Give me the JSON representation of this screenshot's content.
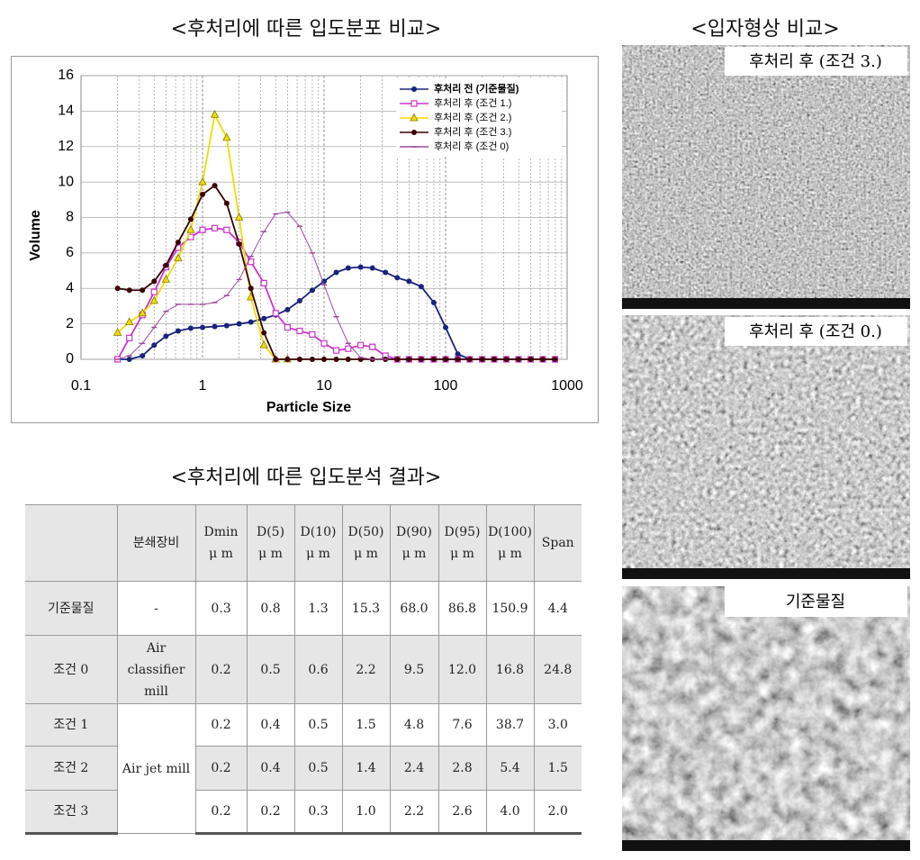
{
  "headings": {
    "distribution": "<후처리에 따른 입도분포 비교>",
    "shape": "<입자형상 비교>",
    "table": "<후처리에 따른 입도분석 결과>"
  },
  "chart_data": {
    "type": "line",
    "xlabel": "Particle Size",
    "ylabel": "Volume",
    "xscale": "log",
    "xlim": [
      0.1,
      1000
    ],
    "xticks": [
      0.1,
      1,
      10,
      100,
      1000
    ],
    "ylim": [
      0,
      16
    ],
    "yticks": [
      0,
      2,
      4,
      6,
      8,
      10,
      12,
      14,
      16
    ],
    "grid": true,
    "minor_grid": true,
    "legend": "upper right",
    "x": [
      0.2,
      0.25,
      0.32,
      0.4,
      0.5,
      0.63,
      0.8,
      1.0,
      1.26,
      1.58,
      2.0,
      2.5,
      3.2,
      4.0,
      5.0,
      6.3,
      8.0,
      10,
      12.6,
      15.8,
      20,
      25,
      32,
      40,
      50,
      63,
      80,
      100,
      126,
      158,
      200,
      251,
      316,
      398,
      501,
      631,
      794
    ],
    "series": [
      {
        "name": "후처리 전 (기준물질)",
        "color": "#1a237e",
        "marker": "circle",
        "values": [
          0,
          0,
          0.2,
          0.8,
          1.3,
          1.6,
          1.75,
          1.8,
          1.85,
          1.9,
          2.0,
          2.1,
          2.3,
          2.5,
          2.8,
          3.3,
          3.9,
          4.4,
          4.9,
          5.15,
          5.2,
          5.15,
          4.9,
          4.6,
          4.4,
          4.1,
          3.2,
          1.8,
          0.3,
          0,
          0,
          0,
          0,
          0,
          0,
          0,
          0
        ]
      },
      {
        "name": "후처리 후 (조건 1.)",
        "color": "#cc33cc",
        "marker": "square",
        "values": [
          0,
          1.2,
          2.5,
          3.8,
          5.2,
          6.3,
          6.9,
          7.3,
          7.4,
          7.3,
          6.6,
          5.5,
          4.3,
          2.6,
          1.8,
          1.6,
          1.4,
          0.9,
          0.5,
          0.6,
          0.8,
          0.7,
          0.2,
          0,
          0,
          0,
          0,
          0,
          0,
          0,
          0,
          0,
          0,
          0,
          0,
          0,
          0
        ]
      },
      {
        "name": "후처리 후 (조건 2.)",
        "color": "#f0dc00",
        "marker": "triangle",
        "values": [
          1.5,
          2.1,
          2.6,
          3.3,
          4.5,
          5.7,
          7.3,
          10.0,
          13.8,
          12.5,
          8.0,
          3.5,
          0.8,
          0,
          0,
          null,
          null,
          null,
          null,
          null,
          null,
          null,
          null,
          null,
          null,
          null,
          null,
          null,
          null,
          null,
          null,
          null,
          null,
          null,
          null,
          null,
          null
        ]
      },
      {
        "name": "후처리 후 (조건 3.)",
        "color": "#3a0000",
        "marker": "circle",
        "values": [
          4.0,
          3.9,
          3.9,
          4.4,
          5.3,
          6.6,
          7.9,
          9.3,
          9.8,
          8.8,
          6.5,
          4.0,
          1.5,
          0,
          0,
          0,
          0,
          0,
          0,
          0,
          0,
          0,
          0,
          0,
          0,
          0,
          0,
          0,
          0,
          0,
          0,
          0,
          0,
          0,
          0,
          0,
          0
        ]
      },
      {
        "name": "후처리 후 (조건 0)",
        "color": "#9c4a9c",
        "marker": "dash",
        "values": [
          0,
          0.2,
          0.9,
          1.8,
          2.7,
          3.1,
          3.1,
          3.1,
          3.2,
          3.6,
          4.5,
          5.8,
          7.2,
          8.2,
          8.3,
          7.5,
          6.0,
          4.2,
          2.4,
          0.9,
          0.1,
          0,
          0,
          null,
          null,
          null,
          null,
          null,
          null,
          null,
          null,
          null,
          null,
          null,
          null,
          null,
          null
        ]
      }
    ]
  },
  "table": {
    "header": [
      {
        "label": "분쇄장비"
      },
      {
        "label": "Dmin",
        "unit": "μ m"
      },
      {
        "label": "D(5)",
        "unit": "μ m"
      },
      {
        "label": "D(10)",
        "unit": "μ m"
      },
      {
        "label": "D(50)",
        "unit": "μ m"
      },
      {
        "label": "D(90)",
        "unit": "μ m"
      },
      {
        "label": "D(95)",
        "unit": "μ m"
      },
      {
        "label": "D(100)",
        "unit": "μ m"
      },
      {
        "label": "Span"
      }
    ],
    "rows": [
      {
        "name": "기준물질",
        "equipment": "-",
        "values": [
          "0.3",
          "0.8",
          "1.3",
          "15.3",
          "68.0",
          "86.8",
          "150.9",
          "4.4"
        ]
      },
      {
        "name": "조건 0",
        "equipment": "Air classifier mill",
        "values": [
          "0.2",
          "0.5",
          "0.6",
          "2.2",
          "9.5",
          "12.0",
          "16.8",
          "24.8"
        ]
      },
      {
        "name": "조건 1",
        "values": [
          "0.2",
          "0.4",
          "0.5",
          "1.5",
          "4.8",
          "7.6",
          "38.7",
          "3.0"
        ]
      },
      {
        "name": "조건 2",
        "values": [
          "0.2",
          "0.4",
          "0.5",
          "1.4",
          "2.4",
          "2.8",
          "5.4",
          "1.5"
        ]
      },
      {
        "name": "조건 3",
        "values": [
          "0.2",
          "0.2",
          "0.3",
          "1.0",
          "2.2",
          "2.6",
          "4.0",
          "2.0"
        ]
      }
    ],
    "group_equipment": "Air jet mill"
  },
  "images": [
    {
      "caption": "후처리 후 (조건 3.)"
    },
    {
      "caption": "후처리 후 (조건 0.)"
    },
    {
      "caption": "기준물질"
    }
  ]
}
